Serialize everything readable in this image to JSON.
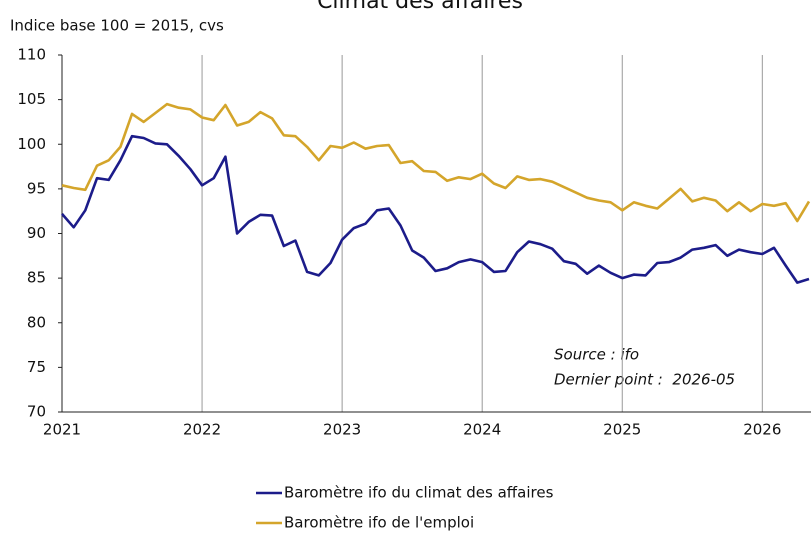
{
  "chart_data": {
    "type": "line",
    "title": "Climat des affaires",
    "y_axis_label": "Indice base 100 = 2015, cvs",
    "annotations": [
      "Source : ifo",
      "Dernier point :  2026-05"
    ],
    "x": [
      "2021-01",
      "2021-02",
      "2021-03",
      "2021-04",
      "2021-05",
      "2021-06",
      "2021-07",
      "2021-08",
      "2021-09",
      "2021-10",
      "2021-11",
      "2021-12",
      "2022-01",
      "2022-02",
      "2022-03",
      "2022-04",
      "2022-05",
      "2022-06",
      "2022-07",
      "2022-08",
      "2022-09",
      "2022-10",
      "2022-11",
      "2022-12",
      "2023-01",
      "2023-02",
      "2023-03",
      "2023-04",
      "2023-05",
      "2023-06",
      "2023-07",
      "2023-08",
      "2023-09",
      "2023-10",
      "2023-11",
      "2023-12",
      "2024-01",
      "2024-02",
      "2024-03",
      "2024-04",
      "2024-05",
      "2024-06",
      "2024-07",
      "2024-08",
      "2024-09",
      "2024-10",
      "2024-11",
      "2024-12",
      "2025-01",
      "2025-02",
      "2025-03",
      "2025-04",
      "2025-05",
      "2025-06",
      "2025-07",
      "2025-08",
      "2025-09",
      "2025-10",
      "2025-11",
      "2025-12",
      "2026-01",
      "2026-02",
      "2026-03",
      "2026-04",
      "2026-05"
    ],
    "series": [
      {
        "name": "Baromètre ifo du climat des affaires",
        "color": "#1c1c8a",
        "values": [
          92.2,
          90.7,
          92.6,
          96.2,
          96.0,
          98.2,
          100.9,
          100.7,
          100.1,
          100.0,
          98.7,
          97.2,
          95.4,
          96.2,
          98.6,
          90.0,
          91.3,
          92.1,
          92.0,
          88.6,
          89.2,
          85.7,
          85.3,
          86.7,
          89.3,
          90.6,
          91.1,
          92.6,
          92.8,
          90.9,
          88.1,
          87.3,
          85.8,
          86.1,
          86.8,
          87.1,
          86.8,
          85.7,
          85.8,
          87.9,
          89.1,
          88.8,
          88.3,
          86.9,
          86.6,
          85.5,
          86.4,
          85.6,
          85.0,
          85.4,
          85.3,
          86.7,
          86.8,
          87.3,
          88.2,
          88.4,
          88.7,
          87.5,
          88.2,
          87.9,
          87.7,
          88.4,
          86.4,
          84.5,
          84.9
        ]
      },
      {
        "name": "Baromètre ifo de l'emploi",
        "color": "#d4a52b",
        "values": [
          95.4,
          95.1,
          94.9,
          97.6,
          98.2,
          99.7,
          103.4,
          102.5,
          103.5,
          104.5,
          104.1,
          103.9,
          103.0,
          102.7,
          104.4,
          102.1,
          102.5,
          103.6,
          102.9,
          101.0,
          100.9,
          99.7,
          98.2,
          99.8,
          99.6,
          100.2,
          99.5,
          99.8,
          99.9,
          97.9,
          98.1,
          97.0,
          96.9,
          95.9,
          96.3,
          96.1,
          96.7,
          95.6,
          95.1,
          96.4,
          96.0,
          96.1,
          95.8,
          95.2,
          94.6,
          94.0,
          93.7,
          93.5,
          92.6,
          93.5,
          93.1,
          92.8,
          93.9,
          95.0,
          93.6,
          94.0,
          93.7,
          92.5,
          93.5,
          92.5,
          93.3,
          93.1,
          93.4,
          91.4,
          93.6
        ]
      }
    ],
    "xlim": [
      "2021-01",
      "2026-05"
    ],
    "xticks": [
      2021,
      2022,
      2023,
      2024,
      2025,
      2026
    ],
    "ylim": [
      70,
      110
    ],
    "yticks": [
      70,
      75,
      80,
      85,
      90,
      95,
      100,
      105,
      110
    ],
    "grid": "x"
  }
}
